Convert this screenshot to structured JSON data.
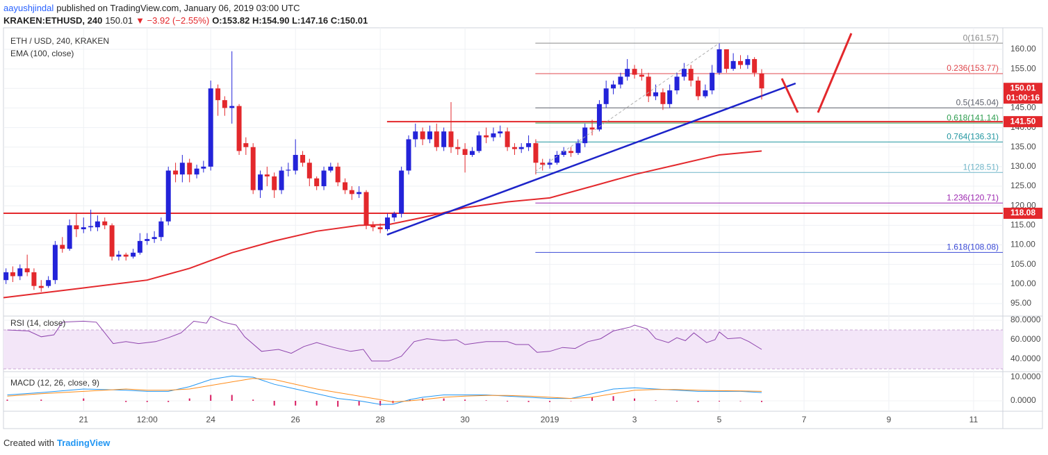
{
  "header": {
    "author": "aayushjindal",
    "published": "published on TradingView.com, January 06, 2019 03:00 UTC",
    "symbol": "KRAKEN:ETHUSD, 240",
    "last": "150.01",
    "change": "▼ −3.92 (−2.55%)",
    "ohlc": "O:153.82 H:154.90 L:147.16 C:150.01"
  },
  "footer": {
    "created": "Created with",
    "brand": "TradingView"
  },
  "chart_data": [
    {
      "type": "candlestick",
      "title": "ETH / USD, 240, KRAKEN",
      "up_color": "#2323d9",
      "down_color": "#e3282c",
      "xlim": [
        19.11,
        42.69
      ],
      "xticks": [
        {
          "value": 21,
          "label": "21"
        },
        {
          "value": 22.5,
          "label": "12:00"
        },
        {
          "value": 24,
          "label": "24"
        },
        {
          "value": 26,
          "label": "26"
        },
        {
          "value": 28,
          "label": "28"
        },
        {
          "value": 30,
          "label": "30"
        },
        {
          "value": 32,
          "label": "2019"
        },
        {
          "value": 34,
          "label": "3"
        },
        {
          "value": 36,
          "label": "5"
        },
        {
          "value": 38,
          "label": "7"
        },
        {
          "value": 40,
          "label": "9"
        },
        {
          "value": 42,
          "label": "11"
        }
      ],
      "ylim": [
        91.8,
        165.5
      ],
      "yticks": [
        {
          "value": 95,
          "label": "95.00"
        },
        {
          "value": 100,
          "label": "100.00"
        },
        {
          "value": 105,
          "label": "105.00"
        },
        {
          "value": 110,
          "label": "110.00"
        },
        {
          "value": 115,
          "label": "115.00"
        },
        {
          "value": 120,
          "label": "120.00"
        },
        {
          "value": 125,
          "label": "125.00"
        },
        {
          "value": 130,
          "label": "130.00"
        },
        {
          "value": 135,
          "label": "135.00"
        },
        {
          "value": 140,
          "label": "140.00"
        },
        {
          "value": 145,
          "label": "145.00"
        },
        {
          "value": 150,
          "label": "150.00"
        },
        {
          "value": 155,
          "label": "155.00"
        },
        {
          "value": 160,
          "label": "160.00"
        }
      ],
      "grid": true,
      "x": [
        19.17,
        19.33,
        19.5,
        19.67,
        19.83,
        20,
        20.17,
        20.33,
        20.5,
        20.67,
        20.83,
        21,
        21.17,
        21.33,
        21.5,
        21.67,
        21.83,
        22,
        22.17,
        22.33,
        22.5,
        22.67,
        22.83,
        23,
        23.17,
        23.33,
        23.5,
        23.67,
        23.83,
        24,
        24.17,
        24.33,
        24.5,
        24.67,
        24.83,
        25,
        25.17,
        25.33,
        25.5,
        25.67,
        25.83,
        26,
        26.17,
        26.33,
        26.5,
        26.67,
        26.83,
        27,
        27.17,
        27.33,
        27.5,
        27.67,
        27.83,
        28,
        28.17,
        28.33,
        28.5,
        28.67,
        28.83,
        29,
        29.17,
        29.33,
        29.5,
        29.67,
        29.83,
        30,
        30.17,
        30.33,
        30.5,
        30.67,
        30.83,
        31,
        31.17,
        31.33,
        31.5,
        31.67,
        31.83,
        32,
        32.17,
        32.33,
        32.5,
        32.67,
        32.83,
        33,
        33.17,
        33.33,
        33.5,
        33.67,
        33.83,
        34,
        34.17,
        34.33,
        34.5,
        34.67,
        34.83,
        35,
        35.17,
        35.33,
        35.5,
        35.67,
        35.83,
        36,
        36.17,
        36.33,
        36.5,
        36.67,
        36.83,
        37
      ],
      "open": [
        101,
        103,
        102,
        104,
        103,
        99.5,
        99.5,
        101,
        110,
        109,
        115,
        114,
        114.5,
        114.5,
        116,
        115,
        107,
        107.5,
        107,
        108,
        111,
        111.5,
        112,
        116,
        129,
        128,
        131,
        128,
        129.5,
        130,
        150,
        147,
        145,
        145.5,
        136,
        135,
        124,
        128,
        127.5,
        124,
        129,
        129,
        133,
        131,
        127,
        125,
        129,
        130,
        126,
        124,
        123,
        123.5,
        115,
        114.5,
        114,
        117,
        118,
        129,
        137,
        139,
        137,
        139,
        135,
        139,
        135,
        134.5,
        133,
        134,
        138,
        137.5,
        138.5,
        139,
        135,
        134.5,
        135,
        136,
        131,
        130.5,
        131,
        133,
        134,
        133.5,
        136,
        140,
        139.5,
        146,
        150,
        151,
        153,
        155,
        153.5,
        153,
        148,
        149,
        146,
        149.5,
        153,
        155,
        152,
        148,
        149.5,
        154,
        160,
        155,
        157,
        156,
        157.5,
        153.82
      ],
      "high": [
        104,
        104.5,
        105,
        107.5,
        104,
        101,
        102,
        111,
        112,
        116.5,
        118,
        117,
        119,
        117.5,
        117,
        115.5,
        108.5,
        108,
        109,
        113,
        113,
        113.5,
        117,
        130,
        131,
        133,
        132,
        130.5,
        131.5,
        152,
        151,
        148,
        159.5,
        146,
        137.5,
        136,
        129,
        130,
        128.5,
        130,
        131,
        137,
        134,
        132,
        127.5,
        130,
        131,
        131,
        127,
        125,
        125,
        124,
        116,
        115.5,
        118,
        118.5,
        130,
        138,
        141,
        140,
        140.5,
        141,
        140,
        146.5,
        137,
        136,
        135,
        139,
        140,
        140,
        140.5,
        140,
        136,
        136,
        138,
        137,
        132,
        132,
        134,
        135,
        135,
        137,
        141,
        142,
        147,
        152,
        152,
        154,
        157.5,
        156,
        155,
        154,
        151,
        150,
        151,
        154,
        156.5,
        156,
        153,
        151,
        156,
        161.57,
        160,
        159,
        158.5,
        158.5,
        158,
        154.9
      ],
      "low": [
        100,
        100.5,
        101,
        102,
        98.5,
        98,
        99,
        100,
        108,
        108.5,
        112,
        113,
        113.5,
        113.5,
        114,
        106,
        106,
        106,
        106.5,
        107.5,
        110,
        110.5,
        111,
        115,
        126,
        126,
        126,
        127,
        128.5,
        129,
        143,
        143,
        141,
        133,
        133,
        123,
        122,
        125,
        122,
        123,
        127.5,
        128,
        130,
        125,
        124,
        124,
        128.5,
        125,
        123,
        121.5,
        122,
        114,
        113.5,
        113,
        113.5,
        116,
        117,
        128,
        135,
        135.5,
        136,
        134,
        134,
        133.5,
        133,
        128.5,
        132.5,
        133.5,
        136,
        136.5,
        137.5,
        134,
        133,
        133.5,
        134,
        128,
        129,
        129.5,
        130.5,
        132.5,
        132.5,
        133,
        135,
        138,
        139,
        145,
        148.5,
        150,
        152,
        152.5,
        152,
        146.5,
        147,
        144.5,
        145,
        148.5,
        152,
        150.5,
        147,
        147.5,
        148.5,
        153.5,
        154,
        154.5,
        155,
        155,
        153,
        147.16
      ],
      "close": [
        103,
        102,
        104,
        103,
        99.5,
        99,
        101,
        110,
        109,
        115,
        114,
        114.5,
        114.8,
        116,
        115,
        107,
        107.5,
        107,
        108,
        111,
        111.5,
        112,
        116,
        129,
        128,
        131,
        128,
        129.5,
        130,
        150,
        147,
        145,
        145.5,
        134,
        135,
        124,
        128,
        127.5,
        124,
        129,
        129.2,
        133,
        131,
        127,
        125,
        129,
        130,
        126,
        124,
        123,
        123.5,
        115,
        114.5,
        114,
        117,
        118,
        129,
        137,
        139,
        137,
        139,
        135,
        139,
        135,
        134.5,
        133,
        134,
        138,
        137.5,
        138.5,
        139,
        135,
        134.5,
        135,
        136,
        131,
        130.5,
        131,
        133,
        134,
        133.5,
        136,
        140,
        139.5,
        146,
        150,
        151,
        153,
        155,
        153.5,
        153,
        148,
        149,
        146,
        149.5,
        153,
        155,
        152,
        148,
        149.5,
        154,
        160,
        155,
        157,
        156,
        157.5,
        154,
        150.01
      ],
      "ema": {
        "name": "EMA (100, close)",
        "color": "#e3282c",
        "x": [
          19.11,
          21,
          22.5,
          23.5,
          24.5,
          25.5,
          26.5,
          27.5,
          28.2,
          29,
          30,
          31,
          32,
          33,
          34,
          35,
          36,
          37
        ],
        "values": [
          96.5,
          99,
          101,
          104,
          108,
          111,
          113.5,
          115,
          115.2,
          117,
          119.5,
          121,
          122,
          125,
          128,
          130.5,
          133,
          134
        ]
      },
      "trendline": {
        "color": "#1d24c9",
        "x": [
          28.16,
          37.8
        ],
        "values": [
          112.6,
          151.3
        ]
      },
      "levels": [
        {
          "value": 141.5,
          "label": "141.50",
          "x_from": 28.16,
          "color": "#e3282c"
        },
        {
          "value": 118.08,
          "label": "118.08",
          "color": "#e3282c"
        }
      ],
      "last_price": {
        "value": 150.01,
        "label": "150.01",
        "countdown": "01:00:16",
        "color": "#e3282c"
      },
      "fib": {
        "x_from": 31.66,
        "levels": [
          {
            "value": 161.57,
            "label": "0(161.57)",
            "color": "#8a8a8a"
          },
          {
            "value": 153.77,
            "label": "0.236(153.77)",
            "color": "#e0474c"
          },
          {
            "value": 145.04,
            "label": "0.5(145.04)",
            "color": "#5d606b"
          },
          {
            "value": 141.14,
            "label": "0.618(141.14)",
            "color": "#2e9d4f"
          },
          {
            "value": 136.31,
            "label": "0.764(136.31)",
            "color": "#2196a0"
          },
          {
            "value": 128.51,
            "label": "1(128.51)",
            "color": "#6fb5c8"
          },
          {
            "value": 120.71,
            "label": "1.236(120.71)",
            "color": "#9c27b0"
          },
          {
            "value": 108.08,
            "label": "1.618(108.08)",
            "color": "#3949d6"
          }
        ]
      }
    },
    {
      "type": "line",
      "title": "RSI (14, close)",
      "color": "#8e44ad",
      "ylim": [
        27.1,
        84.3
      ],
      "yticks": [
        {
          "value": 40,
          "label": "40.0000"
        },
        {
          "value": 60,
          "label": "60.0000"
        },
        {
          "value": 80,
          "label": "80.0000"
        }
      ],
      "band": [
        30,
        70
      ],
      "x": [
        19.2,
        19.7,
        20,
        20.3,
        20.5,
        21,
        21.3,
        21.7,
        22,
        22.3,
        22.7,
        23,
        23.3,
        23.6,
        23.9,
        24,
        24.3,
        24.6,
        24.8,
        25.2,
        25.6,
        25.9,
        26.2,
        26.5,
        26.9,
        27.3,
        27.6,
        27.8,
        28.2,
        28.5,
        28.8,
        29.1,
        29.5,
        29.8,
        30,
        30.5,
        31,
        31.2,
        31.5,
        31.7,
        32,
        32.3,
        32.6,
        32.9,
        33.2,
        33.5,
        33.9,
        34,
        34.3,
        34.5,
        34.8,
        35,
        35.2,
        35.4,
        35.7,
        35.9,
        36,
        36.2,
        36.5,
        36.7,
        37
      ],
      "values": [
        70,
        69,
        63,
        65,
        78,
        79,
        78,
        56,
        58,
        56,
        58,
        62,
        67,
        79,
        77,
        84,
        78,
        75,
        63,
        48,
        50,
        46,
        53,
        57,
        52,
        48,
        50,
        38,
        38,
        43,
        58,
        61,
        59,
        60,
        55,
        58,
        58,
        55,
        55,
        47,
        48,
        52,
        51,
        58,
        61,
        69,
        73,
        75,
        71,
        61,
        57,
        62,
        59,
        67,
        57,
        60,
        68,
        61,
        62,
        58,
        50
      ]
    },
    {
      "type": "macd",
      "title": "MACD (12, 26, close, 9)",
      "ylim": [
        -4.41,
        12.35
      ],
      "yticks": [
        {
          "value": 0,
          "label": "0.0000"
        },
        {
          "value": 10,
          "label": "10.0000"
        }
      ],
      "x": [
        19.2,
        20,
        21,
        22,
        22.5,
        23,
        23.5,
        24,
        24.5,
        25,
        25.5,
        26,
        26.5,
        27,
        27.5,
        28,
        28.3,
        28.7,
        29,
        29.5,
        30,
        30.5,
        31,
        31.5,
        32,
        32.5,
        33,
        33.5,
        34,
        34.5,
        35,
        35.5,
        36,
        36.5,
        37
      ],
      "series": [
        {
          "color": "#2196f3",
          "values": [
            2.5,
            3.5,
            5,
            4.5,
            4,
            4,
            6,
            9,
            10.5,
            10,
            7,
            5,
            3,
            1,
            0,
            -1.5,
            -1.5,
            0.5,
            1.5,
            2.5,
            2.5,
            2.5,
            2,
            1.5,
            1,
            1,
            3,
            5,
            5.5,
            5,
            4.5,
            4,
            4,
            4,
            3.5
          ]
        },
        {
          "color": "#ff8c1a",
          "values": [
            2,
            3,
            4,
            5,
            4.5,
            4.5,
            5,
            6.5,
            8,
            9.5,
            9,
            7,
            5,
            3.5,
            2,
            0.5,
            -0.5,
            0,
            0.5,
            1.5,
            2,
            2.3,
            2.3,
            2,
            1.5,
            1,
            1.5,
            3,
            4.5,
            4.8,
            4.8,
            4.5,
            4.3,
            4.2,
            4
          ]
        }
      ],
      "histogram": {
        "color": "#d81b60",
        "values": [
          0.5,
          0.5,
          1,
          -0.5,
          -0.5,
          -0.5,
          1,
          2.5,
          2.5,
          0.5,
          -2,
          -2,
          -2,
          -2.5,
          -2,
          -2,
          -1,
          0.5,
          1,
          1,
          0.5,
          0.2,
          -0.3,
          -0.5,
          -0.5,
          0,
          1.5,
          2,
          1,
          0.2,
          -0.3,
          -0.5,
          -0.3,
          -0.2,
          -0.5
        ]
      }
    }
  ]
}
